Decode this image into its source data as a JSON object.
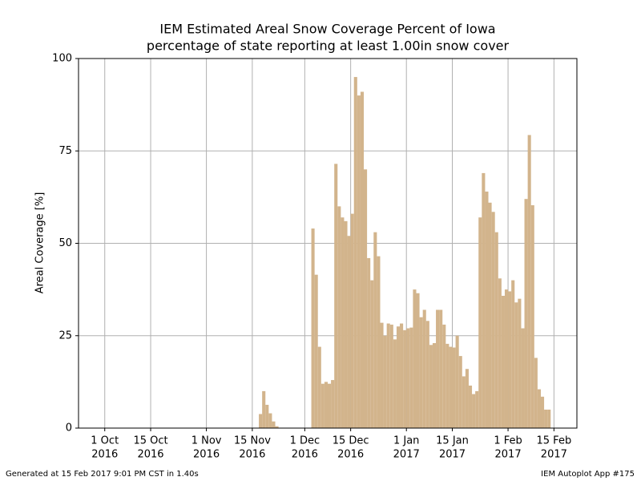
{
  "chart_data": {
    "type": "bar",
    "title": "IEM Estimated Areal Snow Coverage Percent of Iowa",
    "subtitle": "percentage of state reporting at least  1.00in snow cover",
    "y_label": "Areal Coverage [%]",
    "color": "#d2b48c",
    "grid": true,
    "x": [
      "2016-11-17",
      "2016-11-18",
      "2016-11-19",
      "2016-11-20",
      "2016-11-21",
      "2016-11-22",
      "2016-12-03",
      "2016-12-04",
      "2016-12-05",
      "2016-12-06",
      "2016-12-07",
      "2016-12-08",
      "2016-12-09",
      "2016-12-10",
      "2016-12-11",
      "2016-12-12",
      "2016-12-13",
      "2016-12-14",
      "2016-12-15",
      "2016-12-16",
      "2016-12-17",
      "2016-12-18",
      "2016-12-19",
      "2016-12-20",
      "2016-12-21",
      "2016-12-22",
      "2016-12-23",
      "2016-12-24",
      "2016-12-25",
      "2016-12-26",
      "2016-12-27",
      "2016-12-28",
      "2016-12-29",
      "2016-12-30",
      "2016-12-31",
      "2017-01-01",
      "2017-01-02",
      "2017-01-03",
      "2017-01-04",
      "2017-01-05",
      "2017-01-06",
      "2017-01-07",
      "2017-01-08",
      "2017-01-09",
      "2017-01-10",
      "2017-01-11",
      "2017-01-12",
      "2017-01-13",
      "2017-01-14",
      "2017-01-15",
      "2017-01-16",
      "2017-01-17",
      "2017-01-18",
      "2017-01-19",
      "2017-01-20",
      "2017-01-21",
      "2017-01-22",
      "2017-01-23",
      "2017-01-24",
      "2017-01-25",
      "2017-01-26",
      "2017-01-27",
      "2017-01-28",
      "2017-01-29",
      "2017-01-30",
      "2017-01-31",
      "2017-02-01",
      "2017-02-02",
      "2017-02-03",
      "2017-02-04",
      "2017-02-05",
      "2017-02-06",
      "2017-02-07",
      "2017-02-08",
      "2017-02-09",
      "2017-02-10",
      "2017-02-11",
      "2017-02-12",
      "2017-02-13"
    ],
    "values": [
      3.8,
      10,
      6.3,
      4,
      1.8,
      0.5,
      54,
      41.5,
      22,
      12,
      12.5,
      12,
      13,
      71.5,
      60,
      57,
      56,
      52,
      58,
      95,
      90,
      91,
      70,
      46,
      40,
      53,
      46.5,
      28.5,
      25,
      28.3,
      28,
      24,
      27.5,
      28.3,
      26.5,
      27,
      27.2,
      37.5,
      36.5,
      30,
      32,
      29,
      22.5,
      23,
      32,
      32,
      28,
      22.8,
      22,
      21.8,
      25,
      19.5,
      14,
      16,
      11.5,
      9.2,
      10,
      57,
      69,
      64,
      61,
      58.5,
      53,
      40.5,
      35.8,
      37.5,
      37,
      40,
      34,
      35,
      27,
      62,
      79.3,
      60.3,
      19,
      10.5,
      8.5,
      5,
      5
    ],
    "xlim": [
      "2016-09-23",
      "2017-02-22"
    ],
    "xticks": [
      {
        "value": "2016-10-01",
        "label": [
          "1 Oct",
          "2016"
        ]
      },
      {
        "value": "2016-10-15",
        "label": [
          "15 Oct",
          "2016"
        ]
      },
      {
        "value": "2016-11-01",
        "label": [
          "1 Nov",
          "2016"
        ]
      },
      {
        "value": "2016-11-15",
        "label": [
          "15 Nov",
          "2016"
        ]
      },
      {
        "value": "2016-12-01",
        "label": [
          "1 Dec",
          "2016"
        ]
      },
      {
        "value": "2016-12-15",
        "label": [
          "15 Dec",
          "2016"
        ]
      },
      {
        "value": "2017-01-01",
        "label": [
          "1 Jan",
          "2017"
        ]
      },
      {
        "value": "2017-01-15",
        "label": [
          "15 Jan",
          "2017"
        ]
      },
      {
        "value": "2017-02-01",
        "label": [
          "1 Feb",
          "2017"
        ]
      },
      {
        "value": "2017-02-15",
        "label": [
          "15 Feb",
          "2017"
        ]
      }
    ],
    "ylim": [
      0,
      100
    ],
    "yticks": [
      0,
      25,
      50,
      75,
      100
    ],
    "footer_left": "Generated at 15 Feb 2017 9:01 PM CST in 1.40s",
    "footer_right": "IEM Autoplot App #175"
  }
}
